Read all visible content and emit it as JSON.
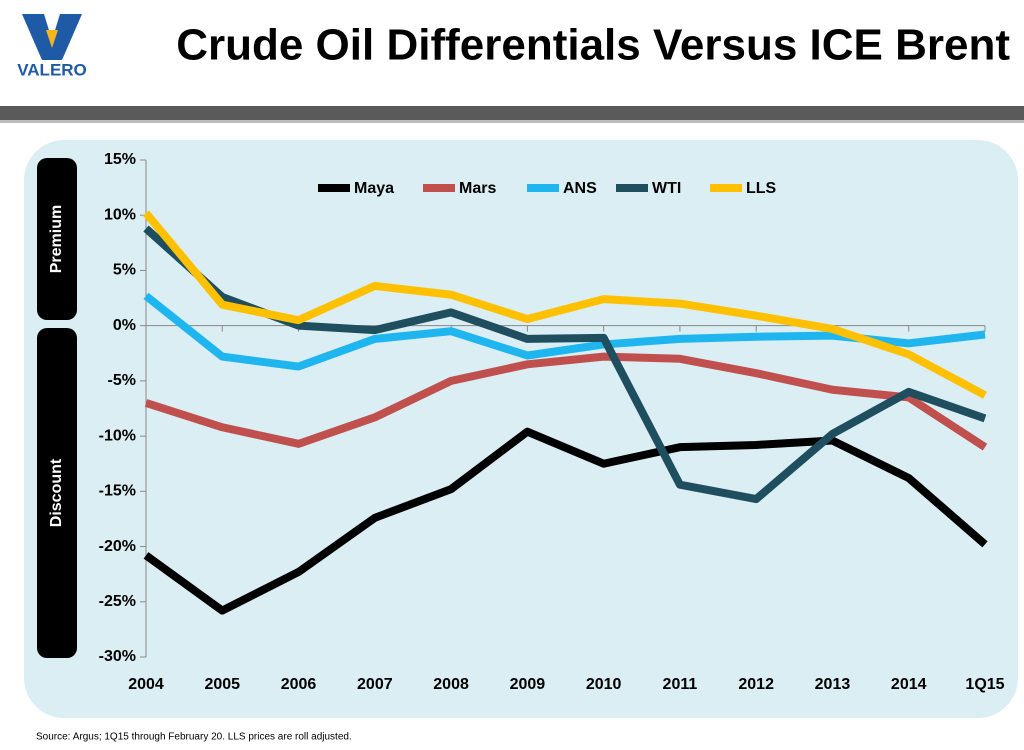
{
  "logo": "VALERO",
  "chart_data": {
    "type": "line",
    "title": "Crude Oil Differentials Versus ICE Brent",
    "categories": [
      "2004",
      "2005",
      "2006",
      "2007",
      "2008",
      "2009",
      "2010",
      "2011",
      "2012",
      "2013",
      "2014",
      "1Q15"
    ],
    "series": [
      {
        "name": "Maya",
        "color": "#000000",
        "values": [
          -20.8,
          -25.8,
          -22.3,
          -17.4,
          -14.8,
          -9.6,
          -12.5,
          -11.0,
          -10.8,
          -10.4,
          -13.8,
          -19.8
        ]
      },
      {
        "name": "Mars",
        "color": "#c0504d",
        "values": [
          -7.0,
          -9.2,
          -10.7,
          -8.3,
          -5.0,
          -3.5,
          -2.8,
          -3.0,
          -4.3,
          -5.8,
          -6.5,
          -11.0
        ]
      },
      {
        "name": "ANS",
        "color": "#1fb6f0",
        "values": [
          2.7,
          -2.8,
          -3.7,
          -1.2,
          -0.5,
          -2.7,
          -1.7,
          -1.2,
          -1.0,
          -0.9,
          -1.6,
          -0.8
        ]
      },
      {
        "name": "WTI",
        "color": "#1f4e5f",
        "values": [
          8.8,
          2.6,
          0.0,
          -0.4,
          1.2,
          -1.2,
          -1.1,
          -14.4,
          -15.7,
          -9.8,
          -6.0,
          -8.4
        ]
      },
      {
        "name": "LLS",
        "color": "#ffc000",
        "values": [
          10.2,
          1.9,
          0.5,
          3.6,
          2.8,
          0.6,
          2.4,
          2.0,
          0.9,
          -0.3,
          -2.6,
          -6.3
        ]
      }
    ],
    "ylim": [
      -30,
      15
    ],
    "yticks": [
      {
        "value": -30,
        "label": "-30%"
      },
      {
        "value": -25,
        "label": "-25%"
      },
      {
        "value": -20,
        "label": "-20%"
      },
      {
        "value": -15,
        "label": "-15%"
      },
      {
        "value": -10,
        "label": "-10%"
      },
      {
        "value": -5,
        "label": "-5%"
      },
      {
        "value": 0,
        "label": "0%"
      },
      {
        "value": 5,
        "label": "5%"
      },
      {
        "value": 10,
        "label": "10%"
      },
      {
        "value": 15,
        "label": "15%"
      }
    ],
    "annotations": [
      "Premium",
      "Discount"
    ],
    "source": "Source:  Argus; 1Q15 through February 20. LLS prices are roll adjusted."
  }
}
